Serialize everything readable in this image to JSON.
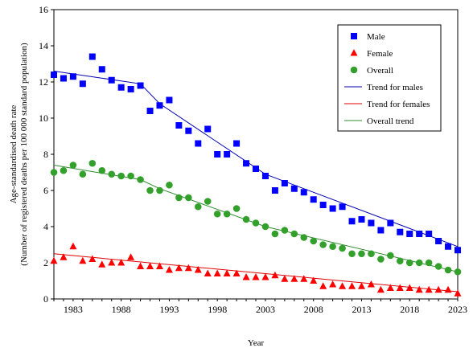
{
  "chart_data": {
    "type": "scatter",
    "title": "",
    "xlabel": "Year",
    "ylabel_line1": "Age-standardised death rate",
    "ylabel_line2": "(Number of registered deaths per 100 000 standard population)",
    "xlim": [
      1981,
      2023
    ],
    "ylim": [
      0,
      16
    ],
    "xticks": [
      1983,
      1988,
      1993,
      1998,
      2003,
      2008,
      2013,
      2018,
      2023
    ],
    "yticks": [
      0,
      2,
      4,
      6,
      8,
      10,
      12,
      14,
      16
    ],
    "legend_position": "top-right",
    "x": [
      1981,
      1982,
      1983,
      1984,
      1985,
      1986,
      1987,
      1988,
      1989,
      1990,
      1991,
      1992,
      1993,
      1994,
      1995,
      1996,
      1997,
      1998,
      1999,
      2000,
      2001,
      2002,
      2003,
      2004,
      2005,
      2006,
      2007,
      2008,
      2009,
      2010,
      2011,
      2012,
      2013,
      2014,
      2015,
      2016,
      2017,
      2018,
      2019,
      2020,
      2021,
      2022,
      2023
    ],
    "series": [
      {
        "name": "Male",
        "marker": "square",
        "color": "#0000ff",
        "values": [
          12.4,
          12.2,
          12.3,
          11.9,
          13.4,
          12.7,
          12.1,
          11.7,
          11.6,
          11.8,
          10.4,
          10.7,
          11.0,
          9.6,
          9.3,
          8.6,
          9.4,
          8.0,
          8.0,
          8.6,
          7.5,
          7.2,
          6.8,
          6.0,
          6.4,
          6.1,
          5.9,
          5.5,
          5.2,
          5.0,
          5.1,
          4.3,
          4.4,
          4.2,
          3.8,
          4.2,
          3.7,
          3.6,
          3.6,
          3.6,
          3.2,
          2.9,
          2.7
        ]
      },
      {
        "name": "Female",
        "marker": "triangle",
        "color": "#ff0000",
        "values": [
          2.1,
          2.3,
          2.9,
          2.1,
          2.2,
          1.9,
          2.0,
          2.0,
          2.3,
          1.8,
          1.8,
          1.8,
          1.6,
          1.7,
          1.7,
          1.6,
          1.4,
          1.4,
          1.4,
          1.4,
          1.2,
          1.2,
          1.2,
          1.3,
          1.1,
          1.1,
          1.1,
          1.0,
          0.7,
          0.8,
          0.7,
          0.7,
          0.7,
          0.8,
          0.5,
          0.6,
          0.6,
          0.6,
          0.5,
          0.5,
          0.5,
          0.5,
          0.3
        ]
      },
      {
        "name": "Overall",
        "marker": "circle",
        "color": "#33a02c",
        "values": [
          7.0,
          7.1,
          7.4,
          6.9,
          7.5,
          7.1,
          6.9,
          6.8,
          6.8,
          6.6,
          6.0,
          6.0,
          6.3,
          5.6,
          5.6,
          5.1,
          5.4,
          4.7,
          4.7,
          5.0,
          4.4,
          4.2,
          4.0,
          3.6,
          3.8,
          3.6,
          3.4,
          3.2,
          3.0,
          2.9,
          2.8,
          2.5,
          2.5,
          2.5,
          2.2,
          2.4,
          2.1,
          2.0,
          2.0,
          2.0,
          1.8,
          1.6,
          1.5
        ]
      }
    ],
    "trends": [
      {
        "name": "Trend for males",
        "color": "#0000b3",
        "points": [
          [
            1981,
            12.6
          ],
          [
            1990,
            11.9
          ],
          [
            1992,
            10.8
          ],
          [
            2003,
            6.9
          ],
          [
            2023,
            2.9
          ]
        ]
      },
      {
        "name": "Trend for females",
        "color": "#e00000",
        "points": [
          [
            1981,
            2.5
          ],
          [
            2023,
            0.4
          ]
        ]
      },
      {
        "name": "Overall trend",
        "color": "#2e8b2e",
        "points": [
          [
            1981,
            7.4
          ],
          [
            1990,
            6.6
          ],
          [
            1992,
            6.1
          ],
          [
            2003,
            4.0
          ],
          [
            2023,
            1.5
          ]
        ]
      }
    ]
  }
}
